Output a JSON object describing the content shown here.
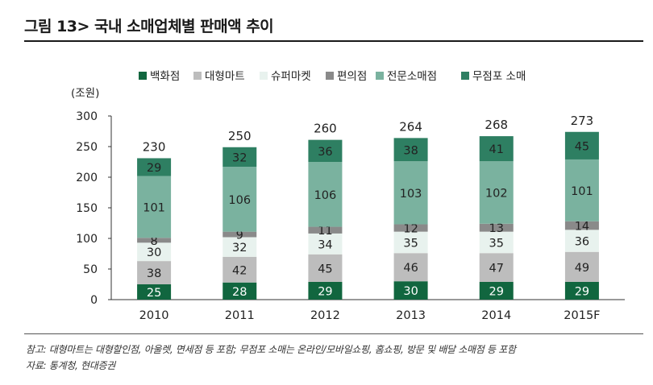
{
  "title": "그림 13> 국내 소매업체별 판매액 추이",
  "footnote": "참고: 대형마트는 대형할인점, 아울렛, 면세점 등 포함; 무점포 소매는 온라인/모바일쇼핑, 홈쇼핑, 방문 및 배달 소매점 등 포함",
  "source": "자료: 통계청, 현대증권",
  "chart_data": {
    "type": "bar",
    "stacked": true,
    "ylabel": "(조원)",
    "ylim": [
      0,
      300
    ],
    "yticks": [
      "0",
      "50",
      "100",
      "150",
      "200",
      "250",
      "300"
    ],
    "categories": [
      "2010",
      "2011",
      "2012",
      "2013",
      "2014",
      "2015F"
    ],
    "totals": [
      "230",
      "250",
      "260",
      "264",
      "268",
      "273"
    ],
    "legend_position": "top",
    "grid": false,
    "series": [
      {
        "name": "백화점",
        "color": "#11663f",
        "label_color": "#ffffff",
        "values": [
          25,
          28,
          29,
          30,
          29,
          29
        ]
      },
      {
        "name": "대형마트",
        "color": "#bdbdbd",
        "label_color": "#222222",
        "values": [
          38,
          42,
          45,
          46,
          47,
          49
        ]
      },
      {
        "name": "슈퍼마켓",
        "color": "#e8f2ee",
        "label_color": "#222222",
        "values": [
          30,
          32,
          34,
          35,
          35,
          36
        ]
      },
      {
        "name": "편의점",
        "color": "#8a8a8a",
        "label_color": "#222222",
        "values": [
          8,
          9,
          11,
          12,
          13,
          14
        ]
      },
      {
        "name": "전문소매점",
        "color": "#7ab29f",
        "label_color": "#222222",
        "values": [
          101,
          106,
          106,
          103,
          102,
          101
        ]
      },
      {
        "name": "무점포 소매",
        "color": "#2e7f62",
        "label_color": "#222222",
        "values": [
          29,
          32,
          36,
          38,
          41,
          45
        ]
      }
    ]
  }
}
